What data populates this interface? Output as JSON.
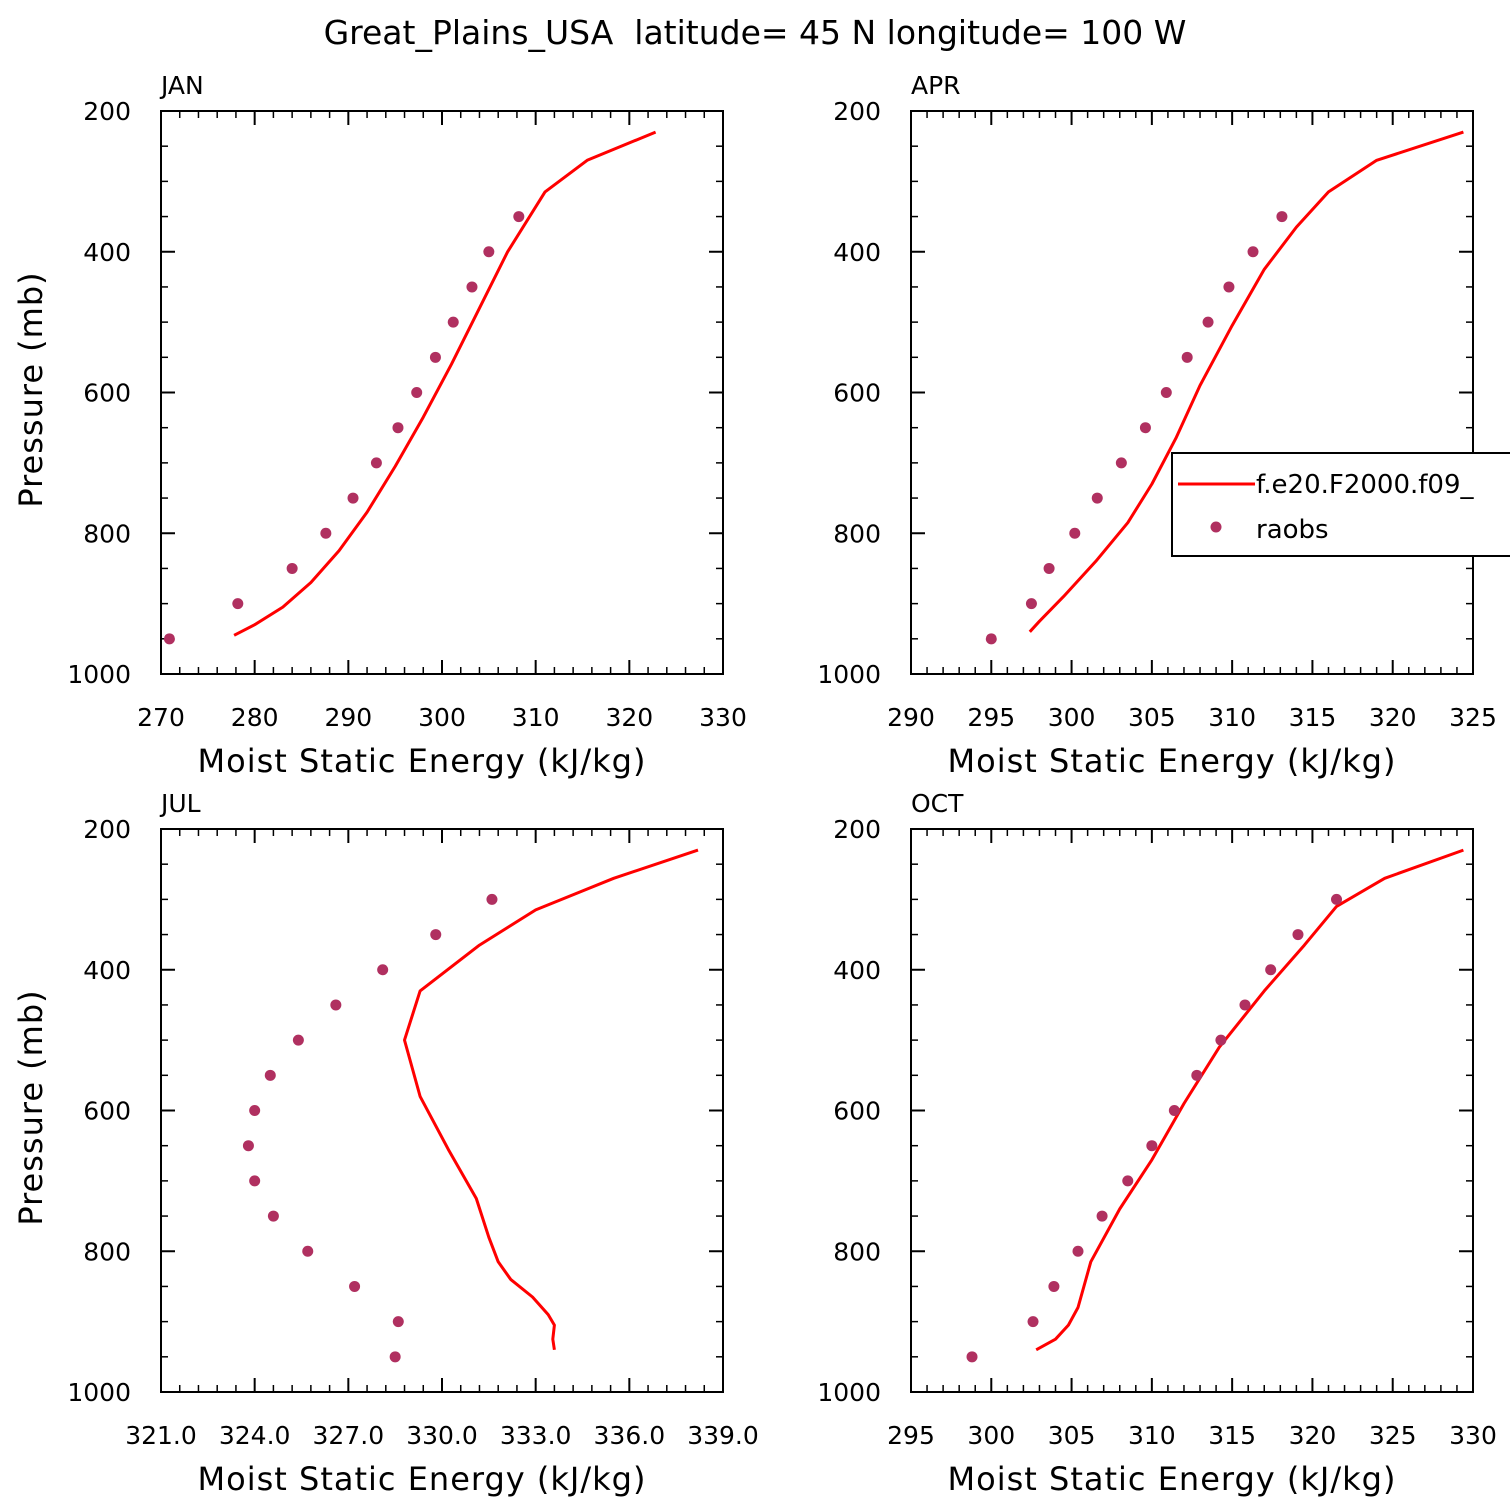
{
  "title": "Great_Plains_USA  latitude= 45 N longitude= 100 W",
  "colors": {
    "model_line": "#ff0000",
    "obs_marker": "#b03060",
    "axes": "#000000"
  },
  "legend": {
    "entries": [
      {
        "label": "f.e20.F2000.f09_",
        "style": "line"
      },
      {
        "label": "raobs",
        "style": "marker"
      }
    ]
  },
  "chart_data": [
    {
      "type": "line",
      "panel_label": "JAN",
      "xlabel": "Moist Static Energy (kJ/kg)",
      "ylabel": "Pressure (mb)",
      "xlim": [
        270,
        330
      ],
      "ylim": [
        1000,
        200
      ],
      "xticks": [
        270,
        280,
        290,
        300,
        310,
        320,
        330
      ],
      "xtick_labels": [
        "270",
        "280",
        "290",
        "300",
        "310",
        "320",
        "330"
      ],
      "yticks": [
        200,
        400,
        600,
        800,
        1000
      ],
      "ytick_labels": [
        "200",
        "400",
        "600",
        "800",
        "1000"
      ],
      "series": [
        {
          "name": "f.e20.F2000.f09_",
          "style": "line",
          "x": [
            277.8,
            280.0,
            283.0,
            286.0,
            289.0,
            292.0,
            295.0,
            298.0,
            301.0,
            304.0,
            307.0,
            311.0,
            315.5,
            322.8
          ],
          "y": [
            945,
            930,
            905,
            870,
            825,
            770,
            705,
            635,
            560,
            480,
            400,
            315,
            270,
            230
          ]
        },
        {
          "name": "raobs",
          "style": "marker",
          "x": [
            270.9,
            278.2,
            284.0,
            287.6,
            290.5,
            293.0,
            295.3,
            297.3,
            299.3,
            301.2,
            303.2,
            305.0,
            308.2
          ],
          "y": [
            950,
            900,
            850,
            800,
            750,
            700,
            650,
            600,
            550,
            500,
            450,
            400,
            350
          ]
        }
      ]
    },
    {
      "type": "line",
      "panel_label": "APR",
      "xlabel": "Moist Static Energy (kJ/kg)",
      "ylabel": "",
      "xlim": [
        290,
        325
      ],
      "ylim": [
        1000,
        200
      ],
      "xticks": [
        290,
        295,
        300,
        305,
        310,
        315,
        320,
        325
      ],
      "xtick_labels": [
        "290",
        "295",
        "300",
        "305",
        "310",
        "315",
        "320",
        "325"
      ],
      "yticks": [
        200,
        400,
        600,
        800,
        1000
      ],
      "ytick_labels": [
        "200",
        "400",
        "600",
        "800",
        "1000"
      ],
      "series": [
        {
          "name": "f.e20.F2000.f09_",
          "style": "line",
          "x": [
            297.4,
            298.0,
            299.5,
            301.5,
            303.5,
            305.0,
            306.5,
            308.0,
            310.0,
            312.0,
            314.0,
            316.0,
            319.0,
            324.4
          ],
          "y": [
            940,
            925,
            890,
            840,
            785,
            730,
            665,
            590,
            505,
            425,
            365,
            315,
            270,
            230
          ]
        },
        {
          "name": "raobs",
          "style": "marker",
          "x": [
            295.0,
            297.5,
            298.6,
            300.2,
            301.6,
            303.1,
            304.6,
            305.9,
            307.2,
            308.5,
            309.8,
            311.3,
            313.1
          ],
          "y": [
            950,
            900,
            850,
            800,
            750,
            700,
            650,
            600,
            550,
            500,
            450,
            400,
            350
          ]
        }
      ]
    },
    {
      "type": "line",
      "panel_label": "JUL",
      "xlabel": "Moist Static Energy (kJ/kg)",
      "ylabel": "Pressure (mb)",
      "xlim": [
        321,
        339
      ],
      "ylim": [
        1000,
        200
      ],
      "xticks": [
        321,
        324,
        327,
        330,
        333,
        336,
        339
      ],
      "xtick_labels": [
        "321.0",
        "324.0",
        "327.0",
        "330.0",
        "333.0",
        "336.0",
        "339.0"
      ],
      "yticks": [
        200,
        400,
        600,
        800,
        1000
      ],
      "ytick_labels": [
        "200",
        "400",
        "600",
        "800",
        "1000"
      ],
      "series": [
        {
          "name": "f.e20.F2000.f09_",
          "style": "line",
          "x": [
            333.6,
            333.55,
            333.6,
            333.4,
            332.9,
            332.2,
            331.8,
            331.5,
            331.1,
            330.2,
            329.3,
            328.8,
            329.3,
            331.2,
            333.0,
            335.5,
            338.2
          ],
          "y": [
            940,
            925,
            905,
            890,
            865,
            840,
            815,
            780,
            725,
            655,
            580,
            500,
            430,
            365,
            315,
            270,
            230
          ]
        },
        {
          "name": "raobs",
          "style": "marker",
          "x": [
            328.5,
            328.6,
            327.2,
            325.7,
            324.6,
            324.0,
            323.8,
            324.0,
            324.5,
            325.4,
            326.6,
            328.1,
            329.8,
            331.6
          ],
          "y": [
            950,
            900,
            850,
            800,
            750,
            700,
            650,
            600,
            550,
            500,
            450,
            400,
            350,
            300
          ]
        }
      ]
    },
    {
      "type": "line",
      "panel_label": "OCT",
      "xlabel": "Moist Static Energy (kJ/kg)",
      "ylabel": "",
      "xlim": [
        295,
        330
      ],
      "ylim": [
        1000,
        200
      ],
      "xticks": [
        295,
        300,
        305,
        310,
        315,
        320,
        325,
        330
      ],
      "xtick_labels": [
        "295",
        "300",
        "305",
        "310",
        "315",
        "320",
        "325",
        "330"
      ],
      "yticks": [
        200,
        400,
        600,
        800,
        1000
      ],
      "ytick_labels": [
        "200",
        "400",
        "600",
        "800",
        "1000"
      ],
      "series": [
        {
          "name": "f.e20.F2000.f09_",
          "style": "line",
          "x": [
            302.8,
            304.0,
            304.8,
            305.4,
            306.2,
            308.0,
            310.0,
            312.0,
            314.2,
            317.0,
            319.5,
            321.5,
            324.5,
            329.4
          ],
          "y": [
            940,
            925,
            905,
            880,
            815,
            740,
            670,
            590,
            510,
            430,
            365,
            310,
            270,
            230
          ]
        },
        {
          "name": "raobs",
          "style": "marker",
          "x": [
            298.8,
            302.6,
            303.9,
            305.4,
            306.9,
            308.5,
            310.0,
            311.4,
            312.8,
            314.3,
            315.8,
            317.4,
            319.1,
            321.5
          ],
          "y": [
            950,
            900,
            850,
            800,
            750,
            700,
            650,
            600,
            550,
            500,
            450,
            400,
            350,
            300
          ]
        }
      ]
    }
  ]
}
